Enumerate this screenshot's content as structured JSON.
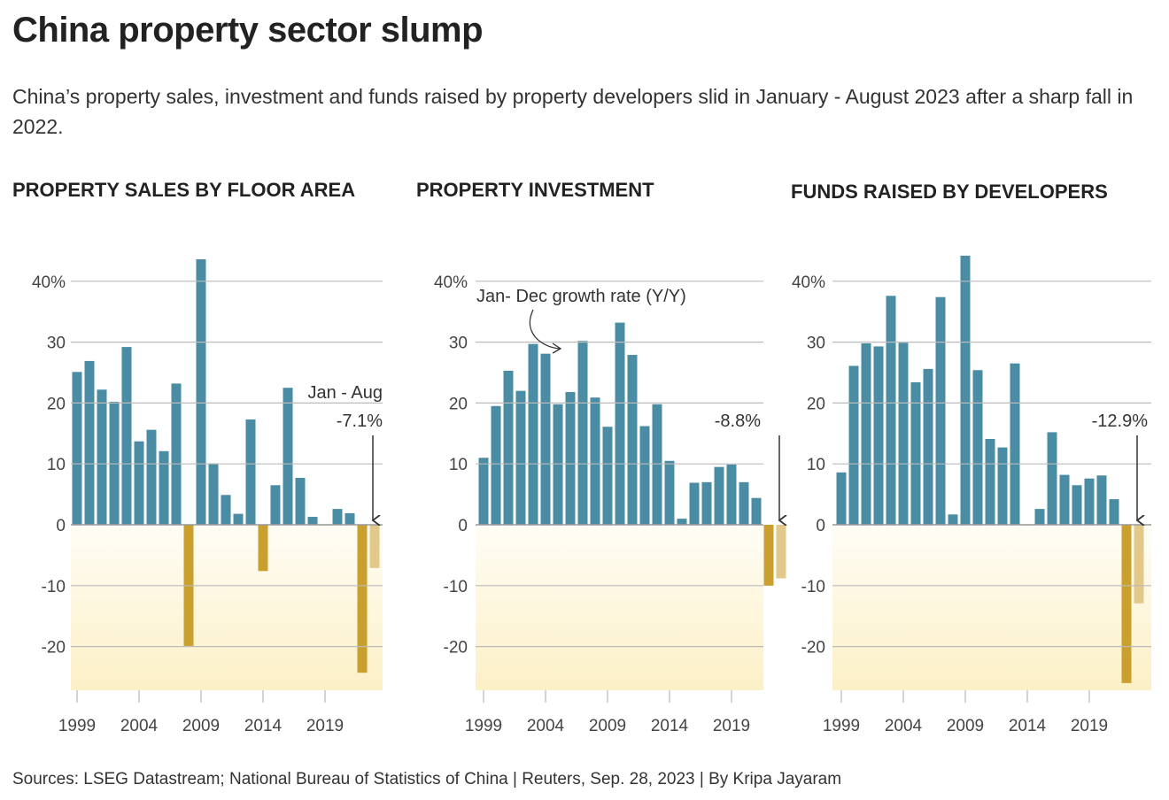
{
  "title": "China property sector slump",
  "subtitle": "China’s property sales, investment and funds raised by property developers slid in January - August 2023 after a sharp fall in 2022.",
  "source": "Sources: LSEG Datastream; National Bureau of Statistics of China | Reuters, Sep. 28, 2023 | By Kripa Jayaram",
  "colors": {
    "positive": "#4a8ca3",
    "negative": "#c9a02e",
    "partial_year": "#e2c98a",
    "negative_zone": "#fdf1c8"
  },
  "chart_data": [
    {
      "type": "bar",
      "title": "PROPERTY SALES BY FLOOR AREA",
      "x": [
        1999,
        2000,
        2001,
        2002,
        2003,
        2004,
        2005,
        2006,
        2007,
        2008,
        2009,
        2010,
        2011,
        2012,
        2013,
        2014,
        2015,
        2016,
        2017,
        2018,
        2019,
        2020,
        2021,
        2022,
        2023
      ],
      "values": [
        25.1,
        26.9,
        22.2,
        20.2,
        29.2,
        13.7,
        15.6,
        12.1,
        23.2,
        -19.9,
        43.6,
        10.1,
        4.9,
        1.8,
        17.3,
        -7.6,
        6.5,
        22.5,
        7.7,
        1.3,
        -0.1,
        2.6,
        1.9,
        -24.3,
        -7.1
      ],
      "ylim": [
        -27,
        45
      ],
      "yticks": [
        "40%",
        "30",
        "20",
        "10",
        "0",
        "-10",
        "-20"
      ],
      "ytick_values": [
        40,
        30,
        20,
        10,
        0,
        -10,
        -20
      ],
      "xticks": [
        "1999",
        "2004",
        "2009",
        "2014",
        "2019"
      ],
      "annotations": [
        "Jan - Aug",
        "-7.1%"
      ],
      "grid": true
    },
    {
      "type": "bar",
      "title": "PROPERTY INVESTMENT",
      "x": [
        1999,
        2000,
        2001,
        2002,
        2003,
        2004,
        2005,
        2006,
        2007,
        2008,
        2009,
        2010,
        2011,
        2012,
        2013,
        2014,
        2015,
        2016,
        2017,
        2018,
        2019,
        2020,
        2021,
        2022,
        2023
      ],
      "values": [
        11.0,
        19.5,
        25.3,
        22.0,
        29.7,
        28.1,
        19.8,
        21.8,
        30.2,
        20.9,
        16.1,
        33.2,
        27.9,
        16.2,
        19.8,
        10.5,
        1.0,
        6.9,
        7.0,
        9.5,
        9.9,
        7.0,
        4.4,
        -10.0,
        -8.8
      ],
      "ylim": [
        -27,
        45
      ],
      "yticks": [
        "40%",
        "30",
        "20",
        "10",
        "0",
        "-10",
        "-20"
      ],
      "ytick_values": [
        40,
        30,
        20,
        10,
        0,
        -10,
        -20
      ],
      "xticks": [
        "1999",
        "2004",
        "2009",
        "2014",
        "2019"
      ],
      "annotations": [
        "Jan- Dec growth rate (Y/Y)",
        "-8.8%"
      ],
      "grid": true
    },
    {
      "type": "bar",
      "title": "FUNDS RAISED BY DEVELOPERS",
      "x": [
        1999,
        2000,
        2001,
        2002,
        2003,
        2004,
        2005,
        2006,
        2007,
        2008,
        2009,
        2010,
        2011,
        2012,
        2013,
        2014,
        2015,
        2016,
        2017,
        2018,
        2019,
        2020,
        2021,
        2022,
        2023
      ],
      "values": [
        8.6,
        26.1,
        29.8,
        29.3,
        37.6,
        29.9,
        23.4,
        25.6,
        37.4,
        1.7,
        44.2,
        25.4,
        14.1,
        12.7,
        26.5,
        -0.1,
        2.6,
        15.2,
        8.2,
        6.5,
        7.6,
        8.1,
        4.2,
        -26.0,
        -12.9
      ],
      "ylim": [
        -27,
        45
      ],
      "yticks": [
        "40%",
        "30",
        "20",
        "10",
        "0",
        "-10",
        "-20"
      ],
      "ytick_values": [
        40,
        30,
        20,
        10,
        0,
        -10,
        -20
      ],
      "xticks": [
        "1999",
        "2004",
        "2009",
        "2014",
        "2019"
      ],
      "annotations": [
        "-12.9%"
      ],
      "grid": true
    }
  ]
}
